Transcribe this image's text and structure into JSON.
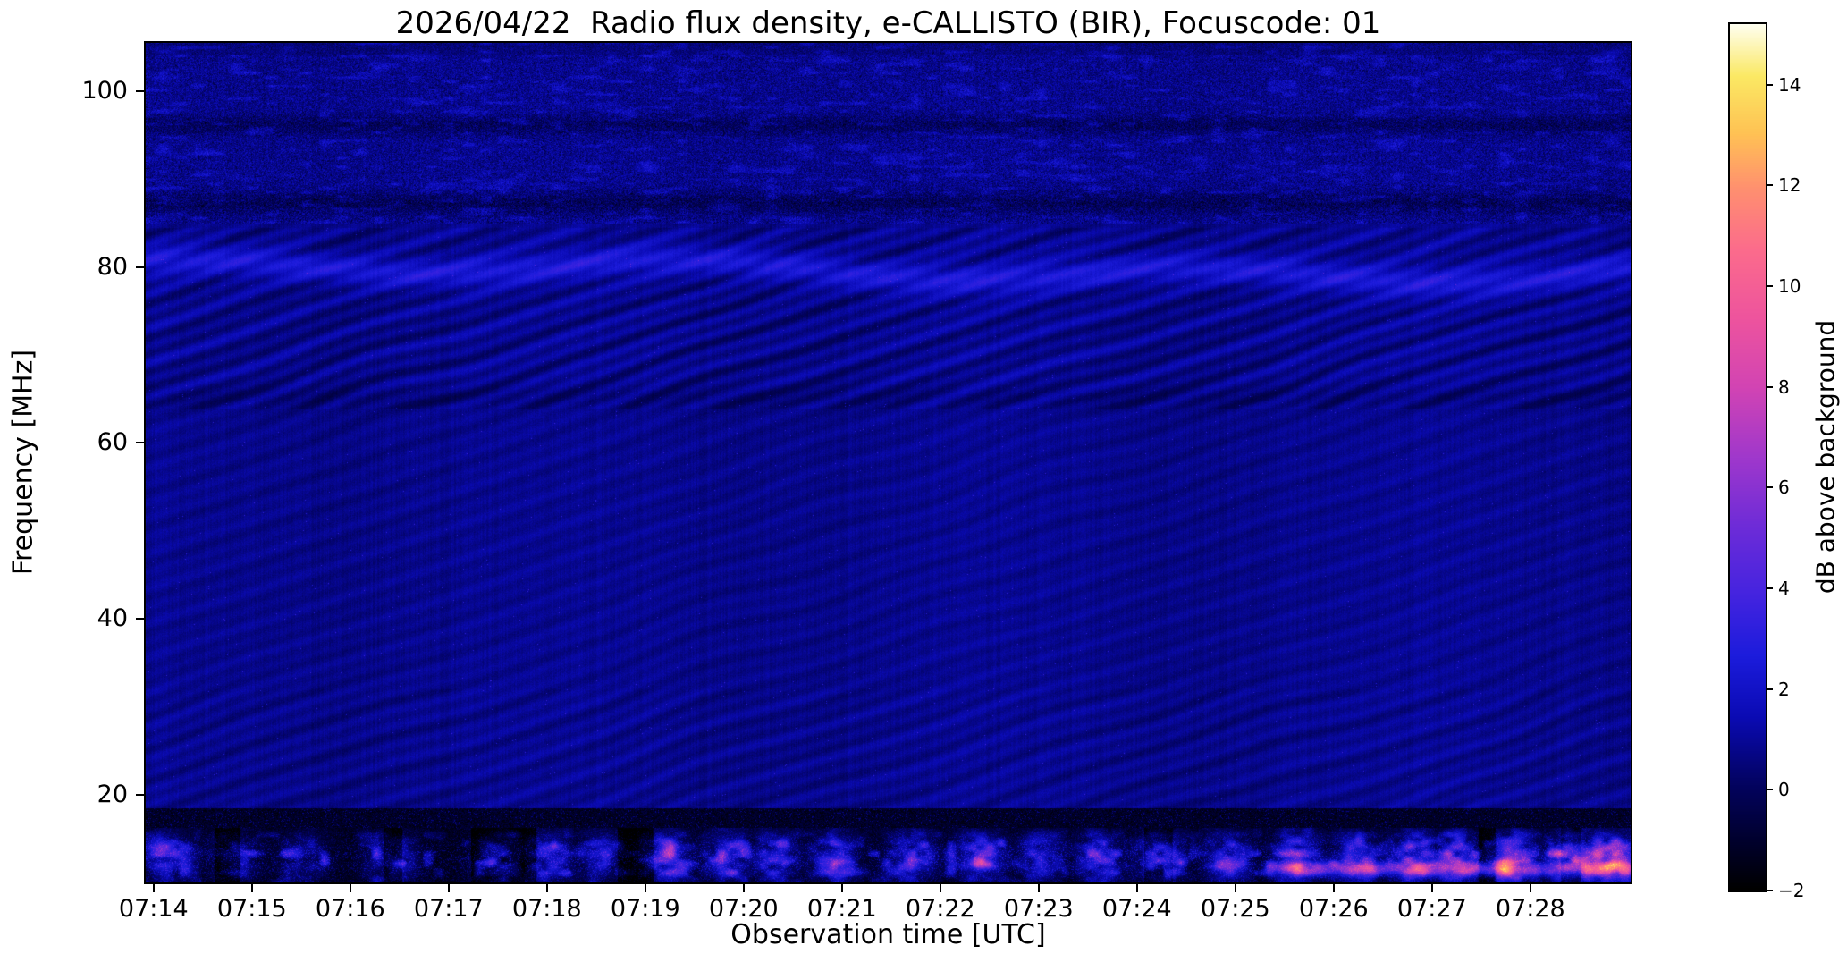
{
  "chart_data": {
    "type": "heatmap",
    "title": "2026/04/22  Radio flux density, e-CALLISTO (BIR), Focuscode: 01",
    "xlabel": "Observation time [UTC]",
    "ylabel": "Frequency [MHz]",
    "colorbar_label": "dB above background",
    "x_tick_labels": [
      "07:14",
      "07:15",
      "07:16",
      "07:17",
      "07:18",
      "07:19",
      "07:20",
      "07:21",
      "07:22",
      "07:23",
      "07:24",
      "07:25",
      "07:26",
      "07:27",
      "07:28"
    ],
    "x_range_minutes": 15.1,
    "y_ticks_mhz": [
      100,
      80,
      60,
      40,
      20
    ],
    "y_range_mhz": [
      10,
      105.5
    ],
    "value_range_db": [
      -2,
      15.2
    ],
    "colorbar_ticks_db": [
      14,
      12,
      10,
      8,
      6,
      4,
      2,
      0,
      -2
    ],
    "grid": false,
    "background_color": "#ffffff",
    "text_color": "#000000",
    "colormap": {
      "name": "gnuplot2-like",
      "stops": [
        [
          0.0,
          "#000000"
        ],
        [
          0.06,
          "#010130"
        ],
        [
          0.12,
          "#03035e"
        ],
        [
          0.2,
          "#0b0bb4"
        ],
        [
          0.27,
          "#1c1cdc"
        ],
        [
          0.34,
          "#4424e0"
        ],
        [
          0.42,
          "#6e2cd8"
        ],
        [
          0.5,
          "#a038cc"
        ],
        [
          0.58,
          "#d244b4"
        ],
        [
          0.66,
          "#ee549e"
        ],
        [
          0.74,
          "#fc6c8c"
        ],
        [
          0.81,
          "#ff9070"
        ],
        [
          0.875,
          "#ffc354"
        ],
        [
          0.94,
          "#fbe964"
        ],
        [
          1.0,
          "#fffff0"
        ]
      ]
    },
    "features": {
      "quiet_background": {
        "freq_mhz": [
          18.5,
          85
        ],
        "base_db": 0.55,
        "noise_db": 0.5,
        "description": "dark-blue quiet solar background"
      },
      "diagonal_ripples": {
        "freq_mhz": [
          18.5,
          84.5
        ],
        "amp_db": 0.2,
        "strong_band_mhz": [
          64,
          84.5
        ],
        "strong_amp_db": 0.5,
        "description": "slanted interference ripple pattern drifting across the band"
      },
      "bright_band_80mhz": {
        "center_mhz": 79.6,
        "sigma_mhz": 1.1,
        "amp_db": 1.75,
        "description": "wavy enhanced emission band near 80 MHz"
      },
      "noisy_top": {
        "freq_mhz": [
          85,
          105.5
        ],
        "noise_db": 1.6,
        "dark_lanes_mhz": [
          87.3,
          96.2
        ],
        "description": "speckled noisy band above 85 MHz with darker horizontal lanes"
      },
      "low_freq_rfi": {
        "freq_mhz": [
          10,
          18.5
        ],
        "base_db": -0.9,
        "center_mhz": 12.8,
        "description": "dark lane below 18 MHz with intermittent strong interference bursts, brightest after 07:25"
      },
      "bursts": {
        "times_min": [
          0.25,
          0.9,
          1.6,
          2.5,
          3.6,
          4.1,
          4.6,
          5.3,
          5.9,
          6.4,
          7.0,
          7.8,
          8.5,
          9.1,
          9.7,
          10.3,
          11.0,
          11.7,
          12.3,
          12.9,
          13.3,
          13.9,
          14.5,
          14.9
        ],
        "amps_db": [
          5,
          3.5,
          3,
          4,
          4.5,
          5.5,
          4,
          6.5,
          6,
          5,
          5.5,
          6.5,
          7,
          5,
          5.5,
          6.5,
          5.5,
          7.5,
          6,
          7.5,
          6.5,
          8.5,
          9.5,
          10
        ],
        "width_min": 0.18
      },
      "low_streak": {
        "freq_mhz": [
          10.8,
          12.4
        ],
        "start_min": 11.3,
        "amp_db": 6.5,
        "description": "persistent bright pink streak near 11-12 MHz late in the interval"
      }
    }
  }
}
